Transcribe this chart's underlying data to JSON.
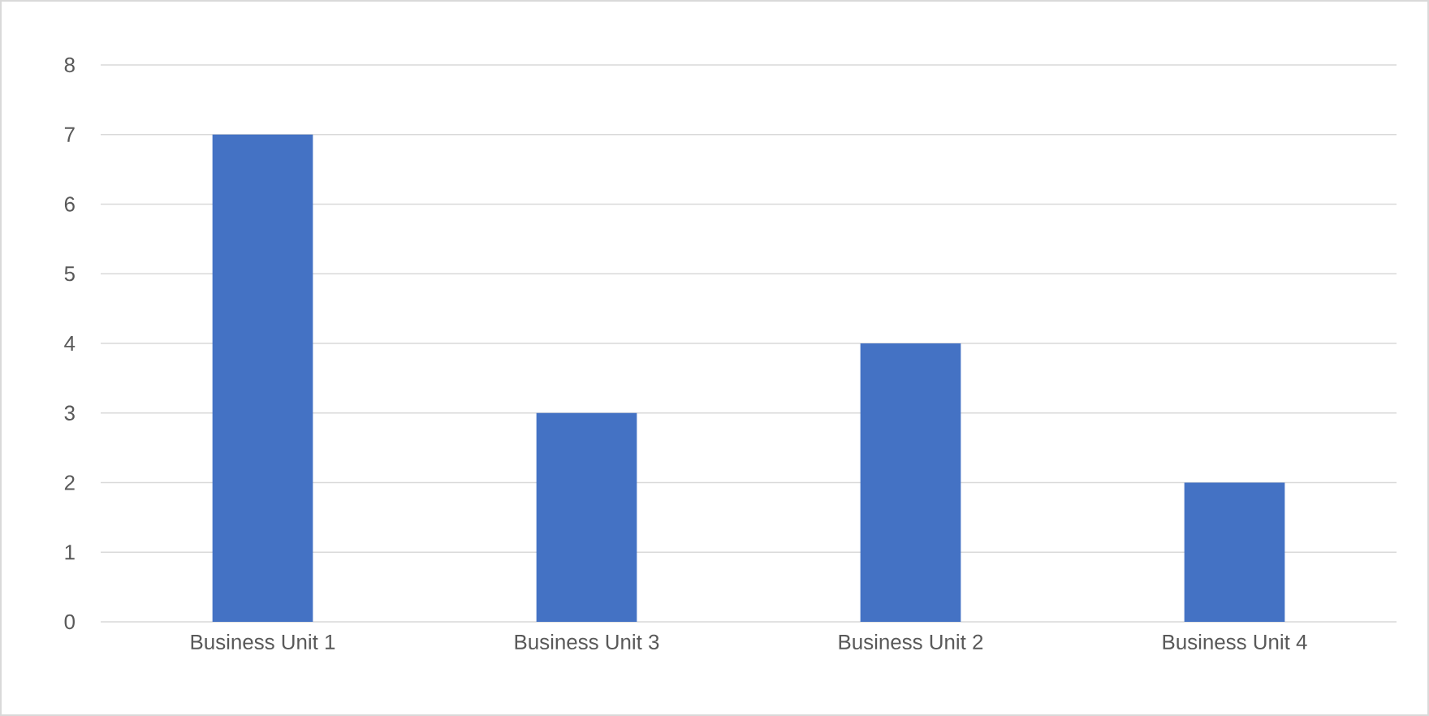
{
  "chart_data": {
    "type": "bar",
    "categories": [
      "Business Unit 1",
      "Business Unit 3",
      "Business Unit 2",
      "Business Unit 4"
    ],
    "values": [
      7,
      3,
      4,
      2
    ],
    "color": "#4472c4",
    "ylim": [
      0,
      8
    ],
    "yticks": [
      0,
      1,
      2,
      3,
      4,
      5,
      6,
      7,
      8
    ],
    "grid": "y"
  }
}
